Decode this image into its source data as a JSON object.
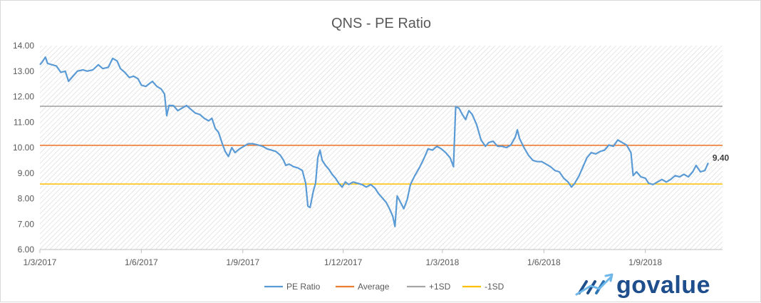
{
  "chart_data": {
    "type": "line",
    "title": "QNS - PE Ratio",
    "xlabel": "",
    "ylabel": "",
    "ylim": [
      6.0,
      14.0
    ],
    "yticks": [
      "6.00",
      "7.00",
      "8.00",
      "9.00",
      "10.00",
      "11.00",
      "12.00",
      "13.00",
      "14.00"
    ],
    "xlim": [
      "2017-03-01",
      "2018-11-10"
    ],
    "xticks": [
      {
        "date": "2017-03-01",
        "label": "1/3/2017"
      },
      {
        "date": "2017-06-01",
        "label": "1/6/2017"
      },
      {
        "date": "2017-09-01",
        "label": "1/9/2017"
      },
      {
        "date": "2017-12-01",
        "label": "1/12/2017"
      },
      {
        "date": "2018-03-01",
        "label": "1/3/2018"
      },
      {
        "date": "2018-06-01",
        "label": "1/6/2018"
      },
      {
        "date": "2018-09-01",
        "label": "1/9/2018"
      }
    ],
    "grid": false,
    "legend_position": "bottom",
    "series": [
      {
        "name": "PE Ratio",
        "color": "#5b9bd5",
        "points": [
          [
            "2017-03-01",
            13.25
          ],
          [
            "2017-03-03",
            13.35
          ],
          [
            "2017-03-06",
            13.55
          ],
          [
            "2017-03-08",
            13.3
          ],
          [
            "2017-03-12",
            13.25
          ],
          [
            "2017-03-16",
            13.2
          ],
          [
            "2017-03-20",
            12.95
          ],
          [
            "2017-03-24",
            13.0
          ],
          [
            "2017-03-27",
            12.6
          ],
          [
            "2017-03-31",
            12.8
          ],
          [
            "2017-04-04",
            13.0
          ],
          [
            "2017-04-09",
            13.05
          ],
          [
            "2017-04-13",
            13.0
          ],
          [
            "2017-04-18",
            13.05
          ],
          [
            "2017-04-23",
            13.25
          ],
          [
            "2017-04-27",
            13.1
          ],
          [
            "2017-05-02",
            13.15
          ],
          [
            "2017-05-06",
            13.5
          ],
          [
            "2017-05-10",
            13.4
          ],
          [
            "2017-05-13",
            13.1
          ],
          [
            "2017-05-17",
            12.95
          ],
          [
            "2017-05-21",
            12.75
          ],
          [
            "2017-05-25",
            12.8
          ],
          [
            "2017-05-29",
            12.7
          ],
          [
            "2017-06-01",
            12.45
          ],
          [
            "2017-06-05",
            12.4
          ],
          [
            "2017-06-08",
            12.5
          ],
          [
            "2017-06-11",
            12.6
          ],
          [
            "2017-06-15",
            12.4
          ],
          [
            "2017-06-19",
            12.3
          ],
          [
            "2017-06-22",
            12.1
          ],
          [
            "2017-06-24",
            11.25
          ],
          [
            "2017-06-26",
            11.65
          ],
          [
            "2017-06-30",
            11.65
          ],
          [
            "2017-07-04",
            11.45
          ],
          [
            "2017-07-08",
            11.55
          ],
          [
            "2017-07-12",
            11.65
          ],
          [
            "2017-07-16",
            11.5
          ],
          [
            "2017-07-20",
            11.35
          ],
          [
            "2017-07-24",
            11.3
          ],
          [
            "2017-07-28",
            11.15
          ],
          [
            "2017-08-01",
            11.05
          ],
          [
            "2017-08-04",
            11.15
          ],
          [
            "2017-08-07",
            10.75
          ],
          [
            "2017-08-10",
            10.6
          ],
          [
            "2017-08-13",
            10.2
          ],
          [
            "2017-08-16",
            9.85
          ],
          [
            "2017-08-19",
            9.65
          ],
          [
            "2017-08-22",
            10.0
          ],
          [
            "2017-08-25",
            9.8
          ],
          [
            "2017-08-29",
            9.95
          ],
          [
            "2017-09-02",
            10.05
          ],
          [
            "2017-09-06",
            10.15
          ],
          [
            "2017-09-10",
            10.15
          ],
          [
            "2017-09-15",
            10.1
          ],
          [
            "2017-09-19",
            10.05
          ],
          [
            "2017-09-23",
            9.95
          ],
          [
            "2017-09-27",
            9.9
          ],
          [
            "2017-10-01",
            9.85
          ],
          [
            "2017-10-05",
            9.7
          ],
          [
            "2017-10-08",
            9.5
          ],
          [
            "2017-10-10",
            9.3
          ],
          [
            "2017-10-13",
            9.35
          ],
          [
            "2017-10-17",
            9.25
          ],
          [
            "2017-10-21",
            9.2
          ],
          [
            "2017-10-25",
            9.1
          ],
          [
            "2017-10-28",
            8.6
          ],
          [
            "2017-10-30",
            7.7
          ],
          [
            "2017-11-01",
            7.65
          ],
          [
            "2017-11-04",
            8.3
          ],
          [
            "2017-11-06",
            8.6
          ],
          [
            "2017-11-08",
            9.6
          ],
          [
            "2017-11-10",
            9.9
          ],
          [
            "2017-11-12",
            9.5
          ],
          [
            "2017-11-15",
            9.3
          ],
          [
            "2017-11-18",
            9.15
          ],
          [
            "2017-11-21",
            8.95
          ],
          [
            "2017-11-24",
            8.8
          ],
          [
            "2017-11-27",
            8.6
          ],
          [
            "2017-11-30",
            8.45
          ],
          [
            "2017-12-03",
            8.65
          ],
          [
            "2017-12-06",
            8.55
          ],
          [
            "2017-12-10",
            8.65
          ],
          [
            "2017-12-14",
            8.6
          ],
          [
            "2017-12-18",
            8.55
          ],
          [
            "2017-12-22",
            8.45
          ],
          [
            "2017-12-26",
            8.55
          ],
          [
            "2017-12-30",
            8.4
          ],
          [
            "2018-01-02",
            8.2
          ],
          [
            "2018-01-06",
            8.0
          ],
          [
            "2018-01-09",
            7.85
          ],
          [
            "2018-01-12",
            7.6
          ],
          [
            "2018-01-15",
            7.3
          ],
          [
            "2018-01-17",
            6.9
          ],
          [
            "2018-01-19",
            8.1
          ],
          [
            "2018-01-22",
            7.85
          ],
          [
            "2018-01-25",
            7.6
          ],
          [
            "2018-01-28",
            7.95
          ],
          [
            "2018-01-31",
            8.55
          ],
          [
            "2018-02-04",
            8.9
          ],
          [
            "2018-02-08",
            9.2
          ],
          [
            "2018-02-12",
            9.55
          ],
          [
            "2018-02-16",
            9.95
          ],
          [
            "2018-02-20",
            9.9
          ],
          [
            "2018-02-24",
            10.05
          ],
          [
            "2018-02-28",
            9.95
          ],
          [
            "2018-03-04",
            9.8
          ],
          [
            "2018-03-08",
            9.6
          ],
          [
            "2018-03-11",
            9.25
          ],
          [
            "2018-03-13",
            11.6
          ],
          [
            "2018-03-16",
            11.55
          ],
          [
            "2018-03-19",
            11.3
          ],
          [
            "2018-03-22",
            11.1
          ],
          [
            "2018-03-25",
            11.45
          ],
          [
            "2018-03-28",
            11.3
          ],
          [
            "2018-04-01",
            10.9
          ],
          [
            "2018-04-05",
            10.3
          ],
          [
            "2018-04-09",
            10.05
          ],
          [
            "2018-04-12",
            10.2
          ],
          [
            "2018-04-16",
            10.25
          ],
          [
            "2018-04-20",
            10.05
          ],
          [
            "2018-04-24",
            10.05
          ],
          [
            "2018-04-28",
            10.0
          ],
          [
            "2018-05-02",
            10.1
          ],
          [
            "2018-05-06",
            10.4
          ],
          [
            "2018-05-08",
            10.7
          ],
          [
            "2018-05-10",
            10.35
          ],
          [
            "2018-05-14",
            10.0
          ],
          [
            "2018-05-18",
            9.7
          ],
          [
            "2018-05-22",
            9.5
          ],
          [
            "2018-05-26",
            9.45
          ],
          [
            "2018-05-30",
            9.45
          ],
          [
            "2018-06-03",
            9.35
          ],
          [
            "2018-06-07",
            9.25
          ],
          [
            "2018-06-11",
            9.1
          ],
          [
            "2018-06-15",
            9.05
          ],
          [
            "2018-06-19",
            8.8
          ],
          [
            "2018-06-23",
            8.65
          ],
          [
            "2018-06-26",
            8.45
          ],
          [
            "2018-06-29",
            8.6
          ],
          [
            "2018-07-03",
            8.9
          ],
          [
            "2018-07-07",
            9.3
          ],
          [
            "2018-07-10",
            9.6
          ],
          [
            "2018-07-14",
            9.8
          ],
          [
            "2018-07-18",
            9.75
          ],
          [
            "2018-07-22",
            9.85
          ],
          [
            "2018-07-26",
            9.9
          ],
          [
            "2018-07-30",
            10.1
          ],
          [
            "2018-08-03",
            10.05
          ],
          [
            "2018-08-07",
            10.3
          ],
          [
            "2018-08-11",
            10.2
          ],
          [
            "2018-08-15",
            10.1
          ],
          [
            "2018-08-19",
            9.8
          ],
          [
            "2018-08-21",
            8.9
          ],
          [
            "2018-08-24",
            9.05
          ],
          [
            "2018-08-28",
            8.85
          ],
          [
            "2018-09-01",
            8.8
          ],
          [
            "2018-09-04",
            8.6
          ],
          [
            "2018-09-08",
            8.55
          ],
          [
            "2018-09-12",
            8.65
          ],
          [
            "2018-09-16",
            8.75
          ],
          [
            "2018-09-20",
            8.65
          ],
          [
            "2018-09-24",
            8.75
          ],
          [
            "2018-09-28",
            8.9
          ],
          [
            "2018-10-02",
            8.85
          ],
          [
            "2018-10-06",
            8.95
          ],
          [
            "2018-10-10",
            8.85
          ],
          [
            "2018-10-14",
            9.05
          ],
          [
            "2018-10-17",
            9.3
          ],
          [
            "2018-10-21",
            9.05
          ],
          [
            "2018-10-25",
            9.1
          ],
          [
            "2018-10-28",
            9.4
          ]
        ]
      },
      {
        "name": "Average",
        "color": "#ed7d31",
        "value": 10.09
      },
      {
        "name": "+1SD",
        "color": "#a5a5a5",
        "value": 11.62
      },
      {
        "name": "-1SD",
        "color": "#ffc000",
        "value": 8.57
      }
    ],
    "annotations": [
      {
        "text": "9.40",
        "date": "2018-10-28",
        "value": 9.4
      }
    ]
  },
  "logo": {
    "text": "govalue"
  }
}
